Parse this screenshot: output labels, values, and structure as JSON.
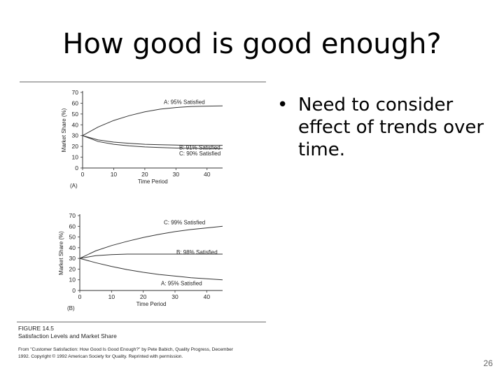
{
  "slide": {
    "title": "How good is good enough?",
    "bullet_marker": "•",
    "bullet": "Need to consider effect of trends over time.",
    "page_number": "26"
  },
  "figure": {
    "number": "FIGURE 14.5",
    "caption": "Satisfaction Levels and Market Share",
    "source_line1": "From \"Customer Satisfaction: How Good Is Good Enough?\" by Pete Babich, Quality Progress, December",
    "source_line2": "1992. Copyright © 1992 American Society for Quality. Reprinted with permission."
  },
  "colors": {
    "line": "#333333",
    "rule": "#666666"
  },
  "chart_data": [
    {
      "type": "line",
      "panel_label": "(A)",
      "xlabel": "Time Period",
      "ylabel": "Market Share (%)",
      "xlim": [
        0,
        45
      ],
      "ylim": [
        0,
        70
      ],
      "xticks": [
        0,
        10,
        20,
        30,
        40
      ],
      "yticks": [
        0,
        10,
        20,
        30,
        40,
        50,
        60,
        70
      ],
      "series": [
        {
          "name": "A: 95% Satisfied",
          "x": [
            0,
            5,
            10,
            15,
            20,
            25,
            30,
            35,
            40,
            45
          ],
          "y": [
            30,
            38,
            44,
            48.5,
            52,
            54.5,
            56,
            57,
            57.3,
            57.5
          ]
        },
        {
          "name": "B: 91% Satisfied",
          "x": [
            0,
            5,
            10,
            15,
            20,
            25,
            30,
            35,
            40,
            45
          ],
          "y": [
            30,
            26,
            24,
            22.8,
            22,
            21.5,
            21.2,
            21,
            21,
            21
          ]
        },
        {
          "name": "C: 90% Satisfied",
          "x": [
            0,
            5,
            10,
            15,
            20,
            25,
            30,
            35,
            40,
            45
          ],
          "y": [
            30,
            24.5,
            22,
            20.5,
            19.5,
            19,
            18.5,
            18.2,
            18,
            18
          ]
        }
      ]
    },
    {
      "type": "line",
      "panel_label": "(B)",
      "xlabel": "Time Period",
      "ylabel": "Market Share (%)",
      "xlim": [
        0,
        45
      ],
      "ylim": [
        0,
        70
      ],
      "xticks": [
        0,
        10,
        20,
        30,
        40
      ],
      "yticks": [
        0,
        10,
        20,
        30,
        40,
        50,
        60,
        70
      ],
      "series": [
        {
          "name": "C: 99% Satisfied",
          "x": [
            0,
            5,
            10,
            15,
            20,
            25,
            30,
            35,
            40,
            45
          ],
          "y": [
            30,
            37,
            42,
            46,
            49.5,
            52.5,
            55,
            57,
            58.5,
            60
          ]
        },
        {
          "name": "B: 98% Satisfied",
          "x": [
            0,
            5,
            10,
            15,
            20,
            25,
            30,
            35,
            40,
            45
          ],
          "y": [
            30,
            32.5,
            33.5,
            34,
            34,
            34,
            34,
            34,
            34,
            34
          ]
        },
        {
          "name": "A: 95% Satisfied",
          "x": [
            0,
            5,
            10,
            15,
            20,
            25,
            30,
            35,
            40,
            45
          ],
          "y": [
            30,
            26,
            22.5,
            19.5,
            17,
            15,
            13.5,
            12,
            11,
            10
          ]
        }
      ]
    }
  ]
}
